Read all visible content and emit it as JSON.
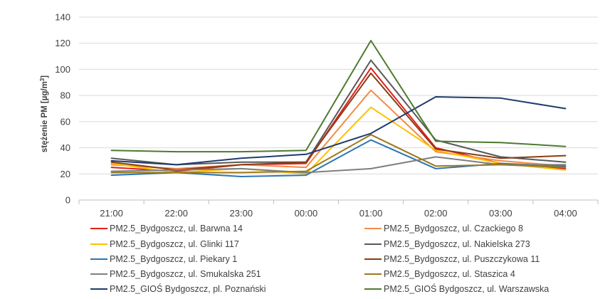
{
  "chart_data": {
    "type": "line",
    "title": "",
    "xlabel": "",
    "ylabel": "stężenie PM [µg/m3]",
    "ylabel_main": "stężenie PM [µg/m",
    "ylabel_sup": "3",
    "ylabel_end": "]",
    "ylim": [
      0,
      140
    ],
    "yticks": [
      "0",
      "20",
      "40",
      "60",
      "80",
      "100",
      "120",
      "140"
    ],
    "categories": [
      "21:00",
      "22:00",
      "23:00",
      "00:00",
      "01:00",
      "02:00",
      "03:00",
      "04:00"
    ],
    "grid": "horizontal",
    "legend_position": "bottom",
    "series": [
      {
        "name": "PM2.5_Bydgoszcz, ul. Barwna 14",
        "color": "#e0201b",
        "values": [
          25,
          22,
          27,
          28,
          101,
          40,
          28,
          24
        ]
      },
      {
        "name": "PM2.5_Bydgoszcz, ul. Czackiego 8",
        "color": "#f28c45",
        "values": [
          27,
          24,
          27,
          25,
          84,
          37,
          30,
          26
        ]
      },
      {
        "name": "PM2.5_Bydgoszcz, ul. Glinki 117",
        "color": "#ffc000",
        "values": [
          28,
          21,
          24,
          20,
          71,
          38,
          28,
          23
        ]
      },
      {
        "name": "PM2.5_Bydgoszcz, ul. Nakielska 273",
        "color": "#595959",
        "values": [
          32,
          27,
          29,
          29,
          107,
          46,
          33,
          29
        ]
      },
      {
        "name": "PM2.5_Bydgoszcz, ul. Piekary 1",
        "color": "#2e75b6",
        "values": [
          19,
          21,
          18,
          19,
          46,
          24,
          28,
          26
        ]
      },
      {
        "name": "PM2.5_Bydgoszcz, ul. Puszczykowa 11",
        "color": "#8b3c14",
        "values": [
          29,
          23,
          27,
          29,
          97,
          39,
          32,
          34
        ]
      },
      {
        "name": "PM2.5_Bydgoszcz, ul. Smukalska 251",
        "color": "#7f7f7f",
        "values": [
          22,
          23,
          24,
          21,
          24,
          33,
          27,
          27
        ]
      },
      {
        "name": "PM2.5_Bydgoszcz, ul. Staszica 4",
        "color": "#9c7a1a",
        "values": [
          21,
          21,
          21,
          22,
          50,
          26,
          27,
          25
        ]
      },
      {
        "name": "PM2.5_GIOŚ Bydgoszcz, pl. Poznański",
        "color": "#1f3b6e",
        "values": [
          30,
          27,
          32,
          35,
          51,
          79,
          78,
          70
        ]
      },
      {
        "name": "PM2.5_GIOŚ Bydgoszcz, ul. Warszawska",
        "color": "#4e7a2f",
        "values": [
          38,
          37,
          37,
          38,
          122,
          45,
          44,
          41
        ]
      }
    ]
  }
}
